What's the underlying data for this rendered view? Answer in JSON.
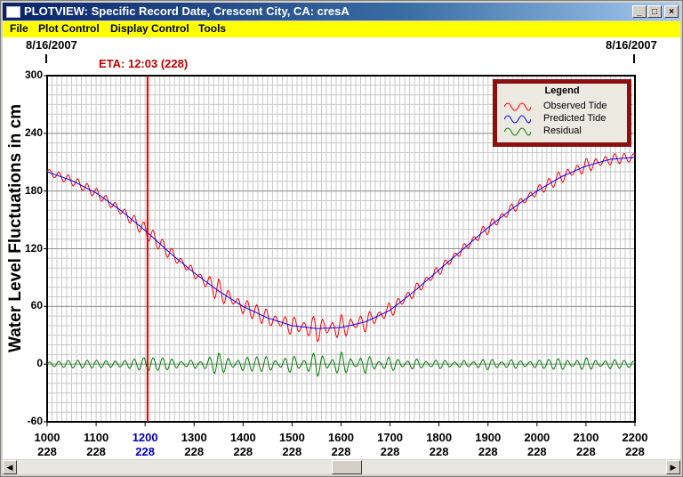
{
  "window": {
    "title": "PLOTVIEW: Specific Record Date, Crescent City, CA: cresA",
    "minimize_glyph": "_",
    "maximize_glyph": "□",
    "close_glyph": "×"
  },
  "menu": {
    "items": [
      {
        "label": "File"
      },
      {
        "label": "Plot Control"
      },
      {
        "label": "Display Control"
      },
      {
        "label": "Tools"
      }
    ]
  },
  "plot": {
    "start_date": "8/16/2007",
    "end_date": "8/16/2007",
    "eta_label": "ETA: 12:03 (228)",
    "eta_color": "#e00000",
    "legend": {
      "title": "Legend",
      "items": [
        {
          "label": "Observed Tide",
          "color": "#ff0000"
        },
        {
          "label": "Predicted Tide",
          "color": "#0000ff"
        },
        {
          "label": "Residual",
          "color": "#008000"
        }
      ]
    },
    "frame_color": "#8b1010"
  },
  "chart_data": {
    "type": "line",
    "ylabel": "Water Level Fluctuations in cm",
    "ylim": [
      -60,
      300
    ],
    "yticks": [
      "300",
      "240",
      "180",
      "120",
      "60",
      "0",
      "-60"
    ],
    "xlim": [
      10.0,
      22.0
    ],
    "xticks": [
      {
        "time": "1000",
        "day": "228"
      },
      {
        "time": "1100",
        "day": "228"
      },
      {
        "time": "1200",
        "day": "228",
        "highlight": true
      },
      {
        "time": "1300",
        "day": "228"
      },
      {
        "time": "1400",
        "day": "228"
      },
      {
        "time": "1500",
        "day": "228"
      },
      {
        "time": "1600",
        "day": "228"
      },
      {
        "time": "1700",
        "day": "228"
      },
      {
        "time": "1800",
        "day": "228"
      },
      {
        "time": "1900",
        "day": "228"
      },
      {
        "time": "2000",
        "day": "228"
      },
      {
        "time": "2100",
        "day": "228"
      },
      {
        "time": "2200",
        "day": "228"
      }
    ],
    "eta_hour": 12.05,
    "grid": true,
    "legend_position": "top-right",
    "series": [
      {
        "name": "Observed Tide",
        "color": "#ff0000",
        "x": [
          10.0,
          10.5,
          11.0,
          11.5,
          12.0,
          12.5,
          13.0,
          13.5,
          14.0,
          14.5,
          15.0,
          15.5,
          16.0,
          16.5,
          17.0,
          17.5,
          18.0,
          18.5,
          19.0,
          19.5,
          20.0,
          20.5,
          21.0,
          21.5,
          22.0
        ],
        "y": [
          200,
          191,
          178,
          160,
          141,
          118,
          95,
          85,
          65,
          52,
          43,
          38,
          39,
          44,
          56,
          78,
          101,
          122,
          142,
          162,
          180,
          196,
          208,
          214,
          212
        ]
      },
      {
        "name": "Predicted Tide",
        "color": "#0000ff",
        "x": [
          10.0,
          10.5,
          11.0,
          11.5,
          12.0,
          12.5,
          13.0,
          13.5,
          14.0,
          14.5,
          15.0,
          15.5,
          16.0,
          16.5,
          17.0,
          17.5,
          18.0,
          18.5,
          19.0,
          19.5,
          20.0,
          20.5,
          21.0,
          21.5,
          22.0
        ],
        "y": [
          200,
          191,
          178,
          160,
          139,
          116,
          95,
          76,
          60,
          48,
          40,
          37,
          38,
          44,
          56,
          76,
          98,
          120,
          142,
          162,
          180,
          195,
          206,
          213,
          215
        ]
      },
      {
        "name": "Residual",
        "color": "#008000",
        "x": [
          10.0,
          10.5,
          11.0,
          11.5,
          12.0,
          12.5,
          13.0,
          13.5,
          14.0,
          14.5,
          15.0,
          15.5,
          16.0,
          16.5,
          17.0,
          17.5,
          18.0,
          18.5,
          19.0,
          19.5,
          20.0,
          20.5,
          21.0,
          21.5,
          22.0
        ],
        "y": [
          0,
          2,
          2,
          1,
          5,
          4,
          -3,
          10,
          -5,
          -6,
          8,
          -12,
          11,
          -8,
          6,
          -4,
          3,
          -2,
          4,
          -3,
          2,
          4,
          -5,
          3,
          1
        ]
      }
    ]
  }
}
